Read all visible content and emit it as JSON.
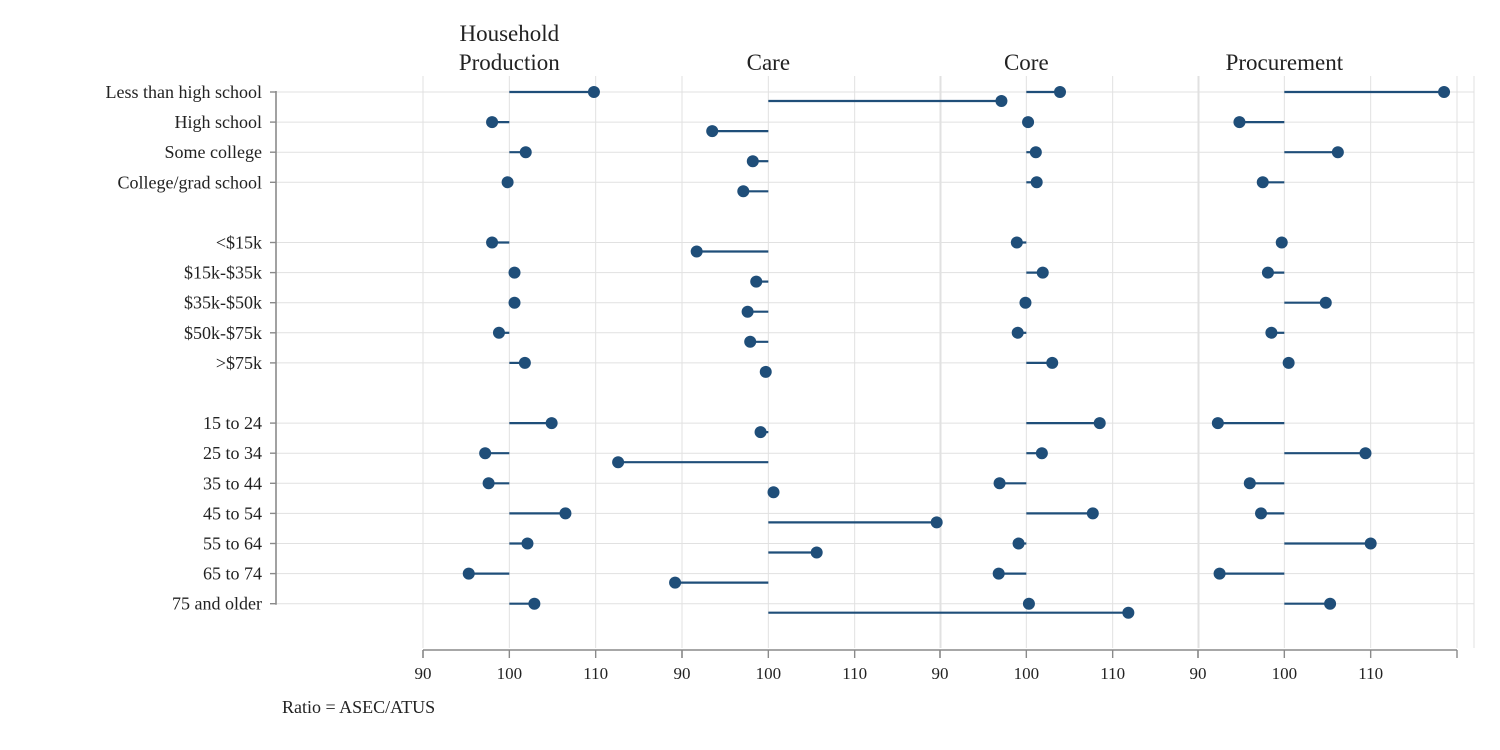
{
  "chart_data": {
    "type": "scatter",
    "style": "lollipop",
    "baseline": 100,
    "note": "Ratio = ASEC/ATUS",
    "rows": [
      "Less than high school",
      "High school",
      "Some college",
      "College/grad school",
      "",
      "<$15k",
      "$15k-$35k",
      "$35k-$50k",
      "$50k-$75k",
      ">$75k",
      "",
      "15 to 24",
      "25 to 34",
      "35 to 44",
      "45 to 54",
      "55 to 64",
      "65 to 74",
      "75 and older"
    ],
    "x_ticks": [
      90,
      100,
      110
    ],
    "colors": {
      "marker": "#1f4e79",
      "stem": "#1f4e79"
    },
    "panels": [
      {
        "title_lines": [
          "Household",
          "Production"
        ],
        "xlim": [
          90,
          120
        ],
        "values": [
          109.8,
          98.0,
          101.9,
          99.8,
          null,
          98.0,
          100.6,
          100.6,
          98.8,
          101.8,
          null,
          104.9,
          97.2,
          97.6,
          106.5,
          102.1,
          95.3,
          102.9
        ]
      },
      {
        "title_lines": [
          "Care"
        ],
        "xlim": [
          90,
          120
        ],
        "values": [
          127.0,
          93.5,
          98.2,
          97.1,
          null,
          91.7,
          98.6,
          97.6,
          97.9,
          99.7,
          null,
          99.1,
          82.6,
          100.6,
          119.5,
          105.6,
          89.2,
          141.7
        ]
      },
      {
        "title_lines": [
          "Core"
        ],
        "xlim": [
          90,
          120
        ],
        "values": [
          103.9,
          100.2,
          101.1,
          101.2,
          null,
          98.9,
          101.9,
          99.9,
          99.0,
          103.0,
          null,
          108.5,
          101.8,
          96.9,
          107.7,
          99.1,
          96.8,
          100.3
        ]
      },
      {
        "title_lines": [
          "Procurement"
        ],
        "xlim": [
          90,
          120
        ],
        "values": [
          118.5,
          94.8,
          106.2,
          97.5,
          null,
          99.7,
          98.1,
          104.8,
          98.5,
          100.5,
          null,
          92.3,
          109.4,
          96.0,
          97.3,
          110.0,
          92.5,
          105.3
        ]
      }
    ]
  }
}
